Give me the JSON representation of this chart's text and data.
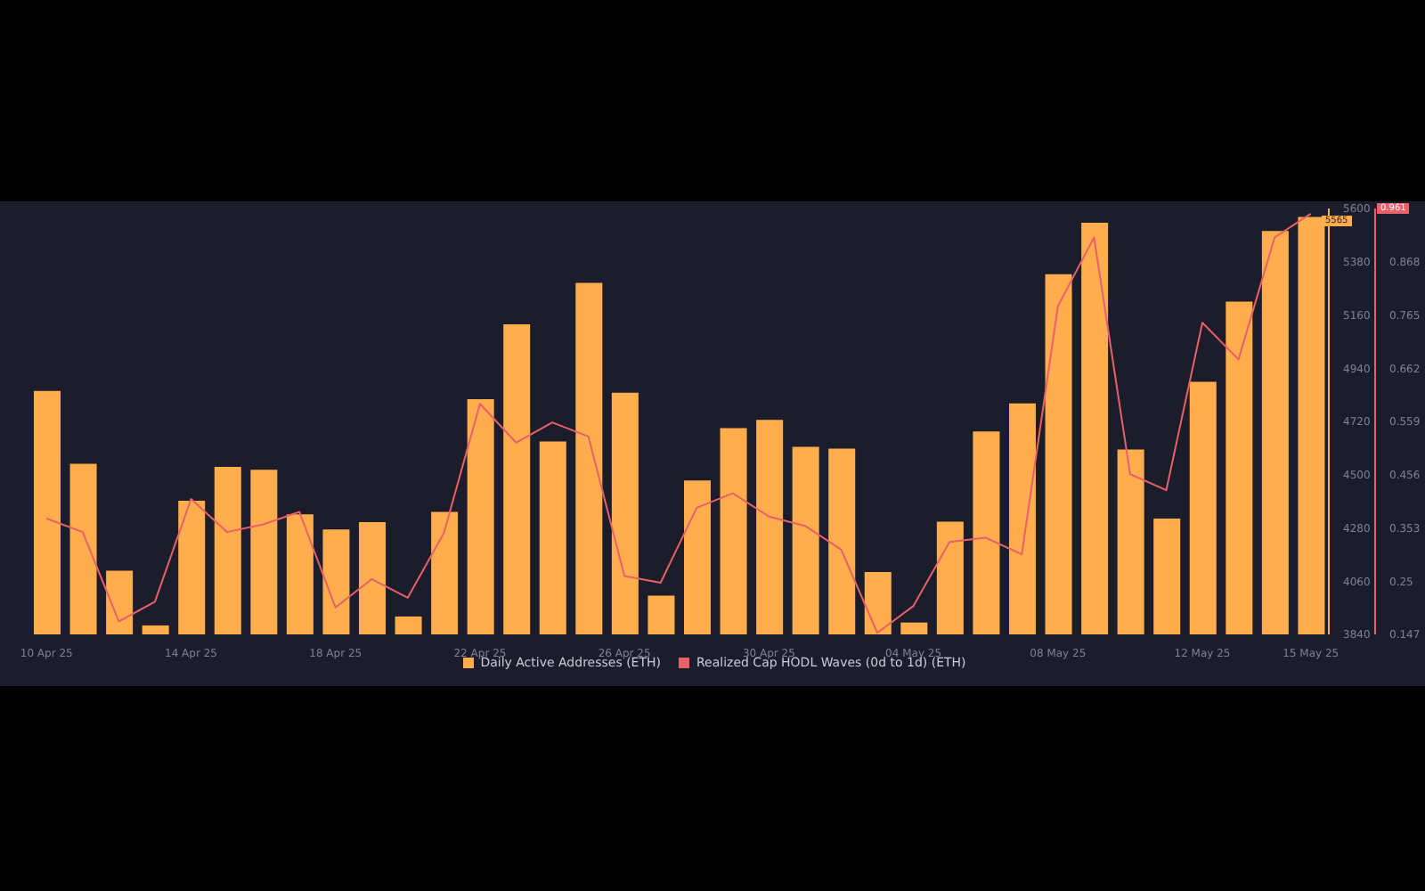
{
  "chart_data": {
    "type": "bar",
    "x": [
      "--04-10",
      "--04-11",
      "--04-12",
      "--04-13",
      "--04-14",
      "--04-15",
      "--04-16",
      "--04-17",
      "--04-18",
      "--04-19",
      "--04-20",
      "--04-21",
      "--04-22",
      "--04-23",
      "--04-24",
      "--04-25",
      "--04-26",
      "--04-27",
      "--04-28",
      "--04-29",
      "--04-30",
      "--05-01",
      "--05-02",
      "--05-03",
      "--05-04",
      "--05-05",
      "--05-06",
      "--05-07",
      "--05-08",
      "--05-09",
      "--05-10",
      "--05-11",
      "--05-12",
      "--05-13",
      "--05-14",
      "--05-15"
    ],
    "series": [
      {
        "name": "Daily Active Addresses (ETH)",
        "color": "#ffad4d",
        "values": [
          4846,
          4545,
          4103,
          3877,
          4392,
          4532,
          4520,
          4336,
          4274,
          4304,
          3914,
          4346,
          4812,
          5121,
          4637,
          5293,
          4839,
          4000,
          4476,
          4692,
          4726,
          4615,
          4608,
          4098,
          3889,
          4306,
          4679,
          4795,
          5328,
          5541,
          4604,
          4319,
          4884,
          5215,
          5507,
          5565
        ]
      },
      {
        "name": "Realized Cap HODL Waves (0d to 1d) (ETH)",
        "type": "line",
        "axis": "y2",
        "color": "#e8606a",
        "values": [
          0.371,
          0.345,
          0.172,
          0.21,
          0.409,
          0.345,
          0.36,
          0.384,
          0.199,
          0.254,
          0.218,
          0.343,
          0.593,
          0.518,
          0.557,
          0.53,
          0.26,
          0.247,
          0.392,
          0.42,
          0.375,
          0.357,
          0.311,
          0.15,
          0.202,
          0.326,
          0.334,
          0.302,
          0.782,
          0.915,
          0.457,
          0.426,
          0.75,
          0.679,
          0.915,
          0.961
        ]
      }
    ],
    "xlim": [
      "--04-09T12:00",
      "--05-15T12:00"
    ],
    "xticks": [
      {
        "value": "--04-10",
        "label": "10 Apr 25"
      },
      {
        "value": "--04-14",
        "label": "14 Apr 25"
      },
      {
        "value": "--04-18",
        "label": "18 Apr 25"
      },
      {
        "value": "--04-22",
        "label": "22 Apr 25"
      },
      {
        "value": "--04-26",
        "label": "26 Apr 25"
      },
      {
        "value": "--04-30",
        "label": "30 Apr 25"
      },
      {
        "value": "--05-04",
        "label": "04 May 25"
      },
      {
        "value": "--05-08",
        "label": "08 May 25"
      },
      {
        "value": "--05-12",
        "label": "12 May 25"
      },
      {
        "value": "--05-15",
        "label": "15 May 25"
      }
    ],
    "ylim": [
      3840,
      5600
    ],
    "yticks": [
      3840,
      4060,
      4280,
      4500,
      4720,
      4940,
      5160,
      5380,
      5600
    ],
    "y2lim": [
      0.147,
      0.971
    ],
    "y2ticks": [
      0.147,
      0.25,
      0.353,
      0.456,
      0.559,
      0.662,
      0.765,
      0.868
    ],
    "annotations": [
      "5565",
      "0.961"
    ],
    "legend": "bottom"
  }
}
